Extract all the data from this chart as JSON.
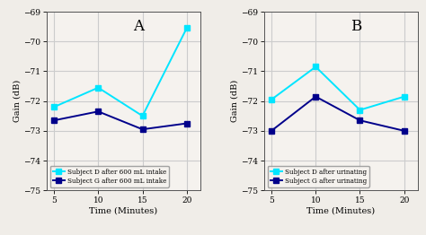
{
  "time": [
    5,
    10,
    15,
    20
  ],
  "panel_A": {
    "label": "A",
    "subject_D": [
      -72.2,
      -71.55,
      -72.5,
      -69.55
    ],
    "subject_G": [
      -72.65,
      -72.35,
      -72.95,
      -72.75
    ],
    "ylabel": "Gain (dB)",
    "xlabel": "Time (Minutes)",
    "legend_D": "Subject D after 600 mL intake",
    "legend_G": "Subject G after 600 mL intake",
    "ylim": [
      -75,
      -69
    ],
    "yticks": [
      -75,
      -74,
      -73,
      -72,
      -71,
      -70,
      -69
    ]
  },
  "panel_B": {
    "label": "B",
    "subject_D": [
      -71.95,
      -70.85,
      -72.3,
      -71.85
    ],
    "subject_G": [
      -73.0,
      -71.85,
      -72.65,
      -73.0
    ],
    "ylabel": "Gain (dB)",
    "xlabel": "Time (Minutes)",
    "legend_D": "Subject D after urinating",
    "legend_G": "Subject G after urinating",
    "ylim": [
      -75,
      -69
    ],
    "yticks": [
      -75,
      -74,
      -73,
      -72,
      -71,
      -70,
      -69
    ]
  },
  "color_cyan": "#00E5FF",
  "color_blue": "#00008B",
  "fig_bg_color": "#F0EDE8",
  "axes_bg_color": "#F5F2EE",
  "grid_color": "#CCCCCC",
  "marker": "s",
  "linewidth": 1.4,
  "markersize": 4,
  "xticks": [
    5,
    10,
    15,
    20
  ]
}
